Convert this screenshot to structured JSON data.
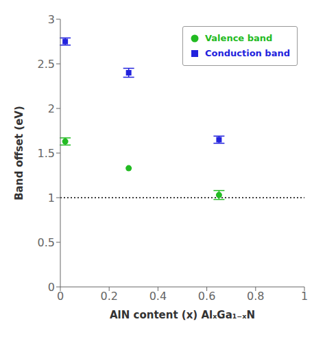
{
  "chart_data": {
    "type": "scatter",
    "x_label": "AlN content (x) AlₓGa₁₋ₓN",
    "y_label": "Band offset (eV)",
    "x": [
      0.02,
      0.28,
      0.65
    ],
    "series": [
      {
        "name": "Valence band",
        "color": "#22bb22",
        "marker": "circle",
        "values": [
          1.63,
          1.33,
          1.03
        ],
        "errors": [
          0.04,
          0.0,
          0.05
        ]
      },
      {
        "name": "Conduction band",
        "color": "#2222dd",
        "marker": "square",
        "values": [
          2.75,
          2.4,
          1.65
        ],
        "errors": [
          0.04,
          0.05,
          0.04
        ]
      }
    ],
    "xlim": [
      0,
      1
    ],
    "ylim": [
      0,
      3.0
    ],
    "xticks": [
      0,
      0.2,
      0.4,
      0.6,
      0.8,
      1.0
    ],
    "yticks": [
      0.0,
      0.5,
      1.0,
      1.5,
      2.0,
      2.5,
      3.0
    ],
    "hline": {
      "y": 1.0,
      "line_style": "dotted",
      "color": "#000000"
    },
    "legend": "upper right",
    "grid": false
  }
}
